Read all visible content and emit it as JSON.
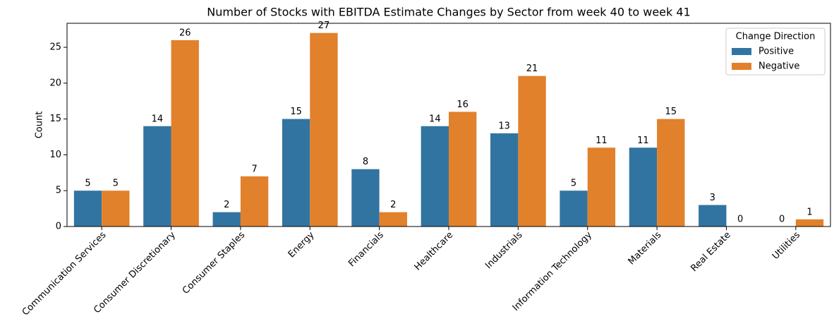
{
  "chart_data": {
    "type": "bar",
    "title": "Number of Stocks with EBITDA Estimate Changes by Sector from week 40 to week 41",
    "y_label": "Count",
    "categories": [
      "Communication Services",
      "Consumer Discretionary",
      "Consumer Staples",
      "Energy",
      "Financials",
      "Healthcare",
      "Industrials",
      "Information Technology",
      "Materials",
      "Real Estate",
      "Utilities"
    ],
    "series": [
      {
        "name": "Positive",
        "color": "#3274a1",
        "values": [
          5,
          14,
          2,
          15,
          8,
          14,
          13,
          5,
          11,
          3,
          0
        ]
      },
      {
        "name": "Negative",
        "color": "#e1812c",
        "values": [
          5,
          26,
          7,
          27,
          2,
          16,
          21,
          11,
          15,
          0,
          1
        ]
      }
    ],
    "ylim": [
      0,
      28.35
    ],
    "yticks": [
      0,
      5,
      10,
      15,
      20,
      25
    ],
    "legend_title": "Change Direction",
    "legend": "upper right",
    "grid": false
  }
}
